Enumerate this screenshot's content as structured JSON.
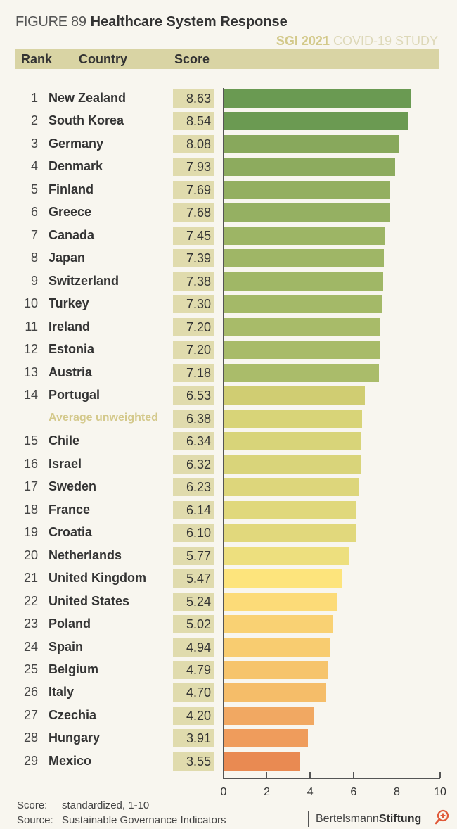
{
  "header": {
    "figure_label": "FIGURE 89",
    "title": "Healthcare System Response",
    "study_bold": "SGI 2021",
    "study_rest": " COVID-19 STUDY",
    "col_rank": "Rank",
    "col_country": "Country",
    "col_score": "Score"
  },
  "chart_data": {
    "type": "bar",
    "orientation": "horizontal",
    "title": "Healthcare System Response",
    "xlabel": "",
    "ylabel": "",
    "xlim": [
      0,
      10
    ],
    "xticks": [
      "0",
      "2",
      "4",
      "6",
      "8",
      "10"
    ],
    "rows": [
      {
        "rank": "1",
        "country": "New Zealand",
        "score": "8.63",
        "value": 8.63,
        "color": "#6a9a52"
      },
      {
        "rank": "2",
        "country": "South Korea",
        "score": "8.54",
        "value": 8.54,
        "color": "#6b9a52"
      },
      {
        "rank": "3",
        "country": "Germany",
        "score": "8.08",
        "value": 8.08,
        "color": "#88a85c"
      },
      {
        "rank": "4",
        "country": "Denmark",
        "score": "7.93",
        "value": 7.93,
        "color": "#8dab5e"
      },
      {
        "rank": "5",
        "country": "Finland",
        "score": "7.69",
        "value": 7.69,
        "color": "#93af60"
      },
      {
        "rank": "6",
        "country": "Greece",
        "score": "7.68",
        "value": 7.68,
        "color": "#95b062"
      },
      {
        "rank": "7",
        "country": "Canada",
        "score": "7.45",
        "value": 7.45,
        "color": "#9db565"
      },
      {
        "rank": "8",
        "country": "Japan",
        "score": "7.39",
        "value": 7.39,
        "color": "#9fb666"
      },
      {
        "rank": "9",
        "country": "Switzerland",
        "score": "7.38",
        "value": 7.38,
        "color": "#a0b766"
      },
      {
        "rank": "10",
        "country": "Turkey",
        "score": "7.30",
        "value": 7.3,
        "color": "#a4b968"
      },
      {
        "rank": "11",
        "country": "Ireland",
        "score": "7.20",
        "value": 7.2,
        "color": "#a8bb69"
      },
      {
        "rank": "12",
        "country": "Estonia",
        "score": "7.20",
        "value": 7.2,
        "color": "#a8bb69"
      },
      {
        "rank": "13",
        "country": "Austria",
        "score": "7.18",
        "value": 7.18,
        "color": "#aabc6a"
      },
      {
        "rank": "14",
        "country": "Portugal",
        "score": "6.53",
        "value": 6.53,
        "color": "#d0cd72"
      },
      {
        "rank": "",
        "country": "Average unweighted",
        "score": "6.38",
        "value": 6.38,
        "color": "#d8d478",
        "is_average": true
      },
      {
        "rank": "15",
        "country": "Chile",
        "score": "6.34",
        "value": 6.34,
        "color": "#d8d479"
      },
      {
        "rank": "16",
        "country": "Israel",
        "score": "6.32",
        "value": 6.32,
        "color": "#d9d47a"
      },
      {
        "rank": "17",
        "country": "Sweden",
        "score": "6.23",
        "value": 6.23,
        "color": "#ddd67b"
      },
      {
        "rank": "18",
        "country": "France",
        "score": "6.14",
        "value": 6.14,
        "color": "#e0d87c"
      },
      {
        "rank": "19",
        "country": "Croatia",
        "score": "6.10",
        "value": 6.1,
        "color": "#e1d87c"
      },
      {
        "rank": "20",
        "country": "Netherlands",
        "score": "5.77",
        "value": 5.77,
        "color": "#eddf7e"
      },
      {
        "rank": "21",
        "country": "United Kingdom",
        "score": "5.47",
        "value": 5.47,
        "color": "#fde47c"
      },
      {
        "rank": "22",
        "country": "United States",
        "score": "5.24",
        "value": 5.24,
        "color": "#fcdb78"
      },
      {
        "rank": "23",
        "country": "Poland",
        "score": "5.02",
        "value": 5.02,
        "color": "#f9d173"
      },
      {
        "rank": "24",
        "country": "Spain",
        "score": "4.94",
        "value": 4.94,
        "color": "#f8cc70"
      },
      {
        "rank": "25",
        "country": "Belgium",
        "score": "4.79",
        "value": 4.79,
        "color": "#f6c46c"
      },
      {
        "rank": "26",
        "country": "Italy",
        "score": "4.70",
        "value": 4.7,
        "color": "#f5bd69"
      },
      {
        "rank": "27",
        "country": "Czechia",
        "score": "4.20",
        "value": 4.2,
        "color": "#f1a862"
      },
      {
        "rank": "28",
        "country": "Hungary",
        "score": "3.91",
        "value": 3.91,
        "color": "#ef9c5c"
      },
      {
        "rank": "29",
        "country": "Mexico",
        "score": "3.55",
        "value": 3.55,
        "color": "#e98a52"
      }
    ]
  },
  "footer": {
    "score_label": "Score:",
    "score_text": "standardized, 1-10",
    "source_label": "Source:",
    "source_text": "Sustainable Governance Indicators",
    "brand_regular": "Bertelsmann",
    "brand_bold": "Stiftung",
    "zoom_icon": "zoom-in-icon"
  }
}
